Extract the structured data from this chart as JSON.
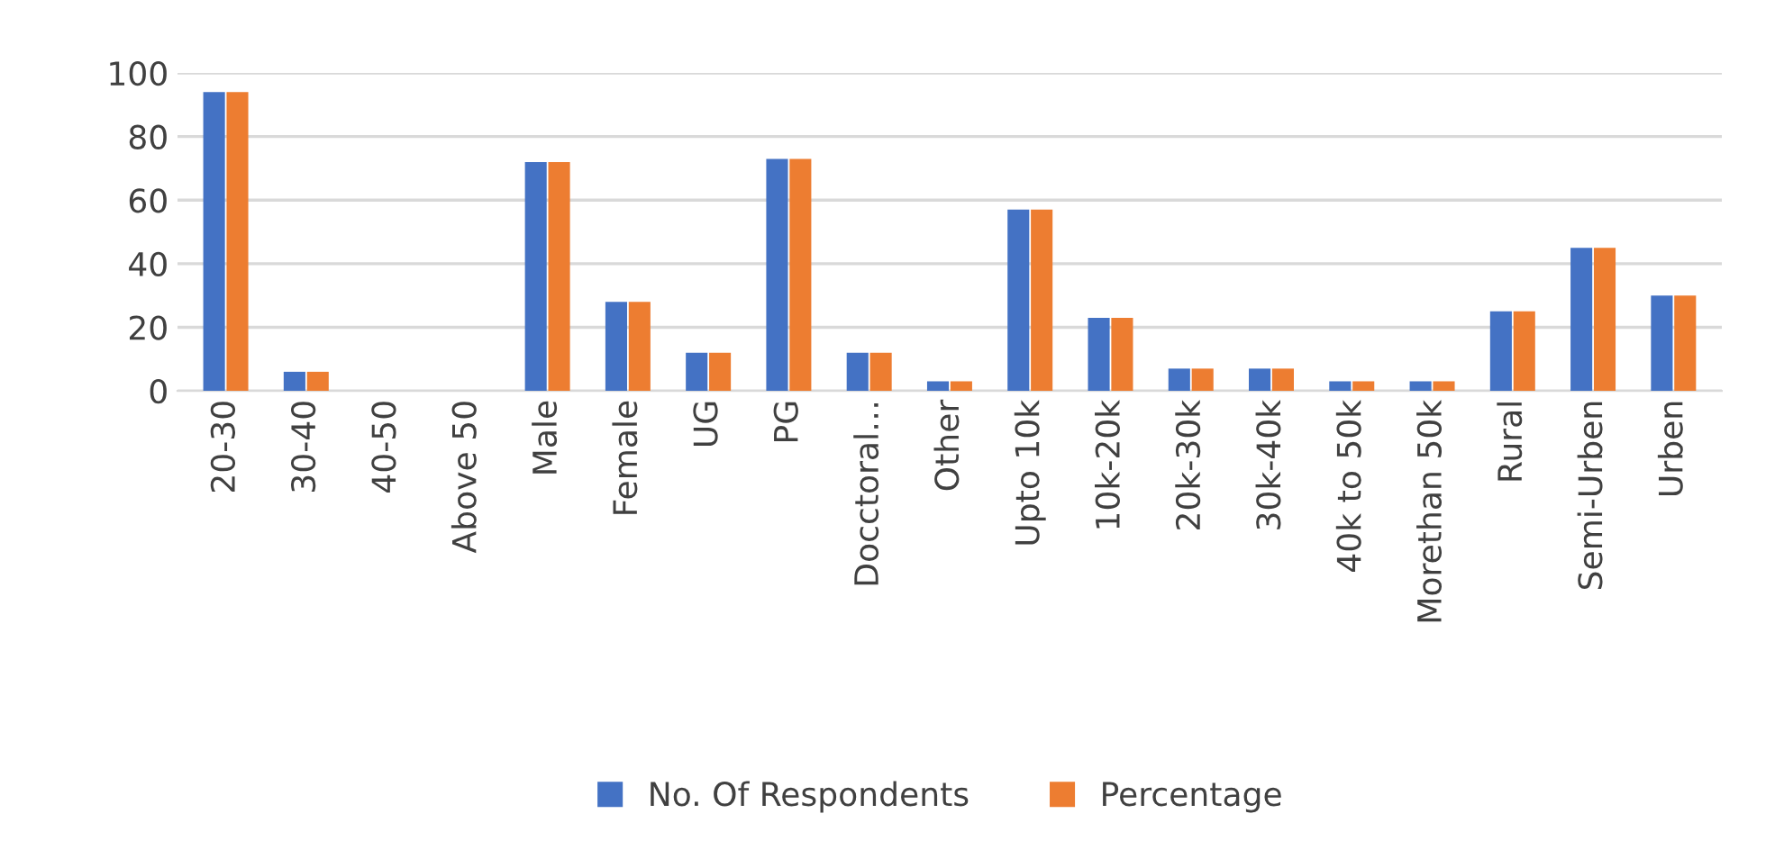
{
  "chart_data": {
    "type": "bar",
    "categories": [
      "20-30",
      "30-40",
      "40-50",
      "Above 50",
      "Male",
      "Female",
      "UG",
      "PG",
      "Docctoral…",
      "Other",
      "Upto 10k",
      "10k-20k",
      "20k-30k",
      "30k-40k",
      "40k to 50k",
      "Morethan 50k",
      "Rural",
      "Semi-Urben",
      "Urben"
    ],
    "series": [
      {
        "name": "No. Of Respondents",
        "color": "#4472c4",
        "values": [
          94,
          6,
          0,
          0,
          72,
          28,
          12,
          73,
          12,
          3,
          57,
          23,
          7,
          7,
          3,
          3,
          25,
          45,
          30
        ]
      },
      {
        "name": "Percentage",
        "color": "#ed7d31",
        "values": [
          94,
          6,
          0,
          0,
          72,
          28,
          12,
          73,
          12,
          3,
          57,
          23,
          7,
          7,
          3,
          3,
          25,
          45,
          30
        ]
      }
    ],
    "ylim": [
      0,
      100
    ],
    "yticks": [
      0,
      20,
      40,
      60,
      80,
      100
    ],
    "grid": "y",
    "legend": "bottom"
  }
}
